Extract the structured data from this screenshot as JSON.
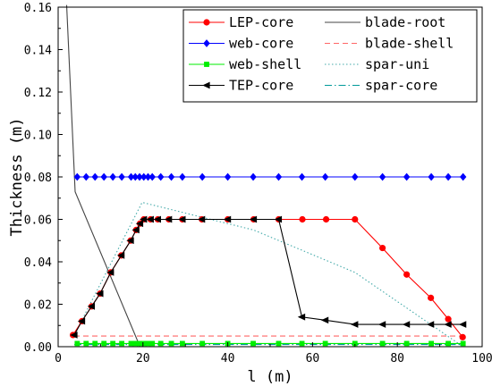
{
  "chart_data": {
    "type": "line",
    "title": "",
    "xlabel": "l (m)",
    "ylabel": "Thickness (m)",
    "xlim": [
      0,
      100
    ],
    "ylim": [
      0.0,
      0.16
    ],
    "xticks": [
      "0",
      "20",
      "40",
      "60",
      "80",
      "100"
    ],
    "yticks": [
      "0.00",
      "0.02",
      "0.04",
      "0.06",
      "0.08",
      "0.10",
      "0.12",
      "0.14",
      "0.16"
    ],
    "grid": false,
    "legend_position": "top-right",
    "series": [
      {
        "name": "LEP-core",
        "color": "#ff0000",
        "marker": "circle",
        "dash": "solid",
        "x": [
          3.5,
          5.6,
          7.9,
          9.9,
          12.4,
          14.9,
          17.1,
          18.4,
          19.3,
          20.2,
          21.8,
          23.5,
          26.1,
          29.3,
          33.9,
          40.0,
          46.1,
          52.0,
          57.6,
          63.2,
          70.0,
          76.5,
          82.2,
          87.9,
          92.0,
          95.4
        ],
        "y": [
          0.0055,
          0.012,
          0.019,
          0.025,
          0.035,
          0.043,
          0.05,
          0.055,
          0.058,
          0.06,
          0.06,
          0.06,
          0.06,
          0.06,
          0.06,
          0.06,
          0.06,
          0.06,
          0.06,
          0.06,
          0.06,
          0.0465,
          0.034,
          0.023,
          0.013,
          0.0045
        ]
      },
      {
        "name": "web-core",
        "color": "#0000ff",
        "marker": "diamond",
        "dash": "solid",
        "x": [
          4.5,
          6.6,
          8.7,
          10.8,
          12.9,
          15.0,
          17.2,
          18.2,
          19.2,
          20.2,
          21.2,
          22.2,
          24.2,
          26.7,
          29.3,
          34.0,
          40.0,
          46.0,
          52.0,
          57.5,
          63.0,
          70.0,
          76.5,
          82.2,
          88.0,
          92.0,
          95.5
        ],
        "y": [
          0.08,
          0.08,
          0.08,
          0.08,
          0.08,
          0.08,
          0.08,
          0.08,
          0.08,
          0.08,
          0.08,
          0.08,
          0.08,
          0.08,
          0.08,
          0.08,
          0.08,
          0.08,
          0.08,
          0.08,
          0.08,
          0.08,
          0.08,
          0.08,
          0.08,
          0.08,
          0.08
        ]
      },
      {
        "name": "web-shell",
        "color": "#00ee00",
        "marker": "square",
        "dash": "solid",
        "x": [
          4.5,
          6.6,
          8.7,
          10.8,
          12.9,
          15.0,
          17.2,
          18.2,
          19.2,
          20.2,
          21.2,
          22.2,
          24.2,
          26.7,
          29.3,
          34.0,
          40.0,
          46.0,
          52.0,
          57.5,
          63.0,
          70.0,
          76.5,
          82.2,
          88.0,
          92.0,
          95.5
        ],
        "y": [
          0.0015,
          0.0015,
          0.0015,
          0.0015,
          0.0015,
          0.0015,
          0.0015,
          0.0015,
          0.0015,
          0.0015,
          0.0015,
          0.0015,
          0.0015,
          0.0015,
          0.0015,
          0.0015,
          0.0015,
          0.0015,
          0.0015,
          0.0015,
          0.0015,
          0.0015,
          0.0015,
          0.0015,
          0.0015,
          0.0015,
          0.0015
        ]
      },
      {
        "name": "TEP-core",
        "color": "#000000",
        "marker": "triangle-left",
        "dash": "solid",
        "x": [
          3.8,
          5.6,
          7.9,
          9.9,
          12.4,
          14.9,
          17.1,
          18.4,
          19.3,
          20.2,
          21.8,
          23.5,
          26.1,
          29.3,
          33.9,
          40.0,
          46.1,
          52.0,
          57.5,
          63.0,
          70.0,
          76.5,
          82.2,
          87.9,
          92.0,
          95.5
        ],
        "y": [
          0.0055,
          0.012,
          0.019,
          0.025,
          0.035,
          0.043,
          0.05,
          0.055,
          0.058,
          0.06,
          0.06,
          0.06,
          0.06,
          0.06,
          0.06,
          0.06,
          0.06,
          0.06,
          0.014,
          0.0125,
          0.0105,
          0.0105,
          0.0105,
          0.0105,
          0.0105,
          0.0105
        ]
      },
      {
        "name": "blade-root",
        "color": "#444444",
        "marker": "none",
        "dash": "solid",
        "x": [
          2.0,
          4.0,
          19.3
        ],
        "y": [
          0.161,
          0.073,
          0.0
        ]
      },
      {
        "name": "blade-shell",
        "color": "#ff6666",
        "marker": "none",
        "dash": "dashed",
        "x": [
          3.8,
          95.5
        ],
        "y": [
          0.005,
          0.005
        ]
      },
      {
        "name": "spar-uni",
        "color": "#44aaaa",
        "marker": "none",
        "dash": "dotted",
        "x": [
          3.8,
          19.8,
          46.1,
          70.0,
          95.5
        ],
        "y": [
          0.0055,
          0.068,
          0.055,
          0.035,
          0.0
        ]
      },
      {
        "name": "spar-core",
        "color": "#009999",
        "marker": "none",
        "dash": "dashdot",
        "x": [
          3.8,
          95.5
        ],
        "y": [
          0.001,
          0.001
        ]
      }
    ]
  }
}
